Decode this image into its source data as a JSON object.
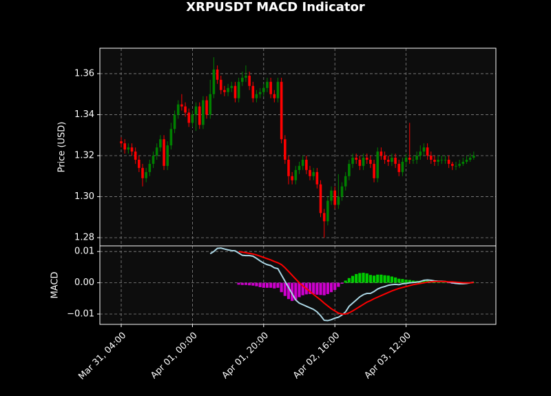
{
  "chart_data": [
    {
      "type": "candlestick",
      "title": "XRPUSDT MACD Indicator",
      "y_label": "Price (USD)",
      "up_color": "#008000",
      "down_color": "#ff0000",
      "open": [
        1.327,
        1.326,
        1.323,
        1.324,
        1.322,
        1.318,
        1.314,
        1.309,
        1.312,
        1.316,
        1.32,
        1.324,
        1.328,
        1.315,
        1.325,
        1.333,
        1.34,
        1.345,
        1.344,
        1.341,
        1.336,
        1.34,
        1.344,
        1.335,
        1.347,
        1.34,
        1.35,
        1.362,
        1.357,
        1.352,
        1.351,
        1.353,
        1.354,
        1.348,
        1.356,
        1.358,
        1.359,
        1.354,
        1.348,
        1.35,
        1.351,
        1.353,
        1.356,
        1.35,
        1.348,
        1.356,
        1.328,
        1.318,
        1.31,
        1.308,
        1.313,
        1.315,
        1.318,
        1.313,
        1.31,
        1.312,
        1.306,
        1.292,
        1.288,
        1.298,
        1.303,
        1.296,
        1.3,
        1.305,
        1.31,
        1.316,
        1.319,
        1.318,
        1.315,
        1.319,
        1.318,
        1.316,
        1.309,
        1.322,
        1.32,
        1.318,
        1.317,
        1.319,
        1.316,
        1.312,
        1.317,
        1.319,
        1.318,
        1.318,
        1.32,
        1.322,
        1.324,
        1.32,
        1.318,
        1.317,
        1.318,
        1.318,
        1.318,
        1.316,
        1.315,
        1.315,
        1.316,
        1.317,
        1.318,
        1.319
      ],
      "high": [
        1.329,
        1.328,
        1.326,
        1.326,
        1.324,
        1.32,
        1.316,
        1.314,
        1.318,
        1.322,
        1.326,
        1.33,
        1.33,
        1.327,
        1.336,
        1.342,
        1.347,
        1.35,
        1.346,
        1.343,
        1.342,
        1.346,
        1.346,
        1.349,
        1.349,
        1.357,
        1.368,
        1.364,
        1.359,
        1.354,
        1.355,
        1.356,
        1.356,
        1.358,
        1.361,
        1.364,
        1.361,
        1.356,
        1.352,
        1.353,
        1.355,
        1.358,
        1.358,
        1.352,
        1.358,
        1.358,
        1.33,
        1.32,
        1.312,
        1.315,
        1.317,
        1.32,
        1.32,
        1.315,
        1.314,
        1.314,
        1.308,
        1.294,
        1.3,
        1.305,
        1.305,
        1.311,
        1.307,
        1.312,
        1.318,
        1.321,
        1.321,
        1.32,
        1.321,
        1.321,
        1.32,
        1.318,
        1.324,
        1.324,
        1.322,
        1.32,
        1.321,
        1.321,
        1.318,
        1.319,
        1.321,
        1.336,
        1.32,
        1.322,
        1.325,
        1.326,
        1.326,
        1.322,
        1.32,
        1.32,
        1.32,
        1.32,
        1.32,
        1.317,
        1.317,
        1.318,
        1.319,
        1.32,
        1.321,
        1.322
      ],
      "low": [
        1.324,
        1.321,
        1.321,
        1.32,
        1.316,
        1.312,
        1.305,
        1.307,
        1.31,
        1.314,
        1.318,
        1.322,
        1.313,
        1.313,
        1.323,
        1.331,
        1.338,
        1.342,
        1.339,
        1.334,
        1.334,
        1.332,
        1.333,
        1.333,
        1.338,
        1.338,
        1.348,
        1.355,
        1.35,
        1.349,
        1.349,
        1.351,
        1.346,
        1.346,
        1.354,
        1.356,
        1.352,
        1.346,
        1.346,
        1.348,
        1.349,
        1.351,
        1.348,
        1.346,
        1.346,
        1.326,
        1.316,
        1.306,
        1.306,
        1.306,
        1.311,
        1.313,
        1.311,
        1.308,
        1.308,
        1.304,
        1.29,
        1.28,
        1.286,
        1.296,
        1.294,
        1.294,
        1.298,
        1.303,
        1.308,
        1.314,
        1.316,
        1.313,
        1.313,
        1.316,
        1.314,
        1.307,
        1.307,
        1.318,
        1.316,
        1.315,
        1.315,
        1.314,
        1.31,
        1.31,
        1.315,
        1.316,
        1.316,
        1.316,
        1.318,
        1.32,
        1.318,
        1.316,
        1.315,
        1.315,
        1.316,
        1.316,
        1.314,
        1.313,
        1.313,
        1.314,
        1.315,
        1.316,
        1.317,
        1.318
      ],
      "close": [
        1.326,
        1.323,
        1.324,
        1.322,
        1.318,
        1.314,
        1.309,
        1.312,
        1.316,
        1.32,
        1.324,
        1.328,
        1.315,
        1.325,
        1.333,
        1.34,
        1.345,
        1.344,
        1.341,
        1.336,
        1.34,
        1.344,
        1.335,
        1.347,
        1.34,
        1.35,
        1.362,
        1.357,
        1.352,
        1.351,
        1.353,
        1.354,
        1.348,
        1.356,
        1.358,
        1.359,
        1.354,
        1.348,
        1.35,
        1.351,
        1.353,
        1.356,
        1.35,
        1.348,
        1.356,
        1.328,
        1.318,
        1.31,
        1.308,
        1.313,
        1.315,
        1.318,
        1.313,
        1.31,
        1.312,
        1.306,
        1.292,
        1.288,
        1.298,
        1.303,
        1.296,
        1.3,
        1.305,
        1.31,
        1.316,
        1.319,
        1.318,
        1.315,
        1.319,
        1.318,
        1.316,
        1.309,
        1.322,
        1.32,
        1.318,
        1.317,
        1.319,
        1.316,
        1.312,
        1.317,
        1.319,
        1.318,
        1.318,
        1.32,
        1.322,
        1.324,
        1.32,
        1.318,
        1.317,
        1.318,
        1.318,
        1.318,
        1.316,
        1.315,
        1.315,
        1.316,
        1.317,
        1.318,
        1.319,
        1.32
      ],
      "ylim": [
        1.276,
        1.3724
      ],
      "yticks": [
        1.28,
        {
          "value": 1.3,
          "label": "1.30"
        },
        1.32,
        1.34,
        1.36
      ],
      "grid": true
    },
    {
      "type": "macd",
      "y_label": "MACD",
      "x": [
        "Mar 31, 04:00",
        null,
        null,
        null,
        null,
        null,
        null,
        null,
        null,
        null,
        null,
        null,
        null,
        null,
        null,
        null,
        null,
        null,
        null,
        null,
        "Apr 01, 00:00",
        null,
        null,
        null,
        null,
        null,
        null,
        null,
        null,
        null,
        null,
        null,
        null,
        null,
        null,
        null,
        null,
        null,
        null,
        null,
        "Apr 01, 20:00",
        null,
        null,
        null,
        null,
        null,
        null,
        null,
        null,
        null,
        null,
        null,
        null,
        null,
        null,
        null,
        null,
        null,
        null,
        null,
        "Apr 02, 16:00",
        null,
        null,
        null,
        null,
        null,
        null,
        null,
        null,
        null,
        null,
        null,
        null,
        null,
        null,
        null,
        null,
        null,
        null,
        null,
        "Apr 03, 12:00",
        null,
        null,
        null,
        null,
        null,
        null,
        null,
        null,
        null,
        null,
        null,
        null,
        null,
        null,
        null,
        null,
        null,
        null,
        null
      ],
      "series": [
        {
          "color": "#add8e6",
          "values": [
            null,
            null,
            null,
            null,
            null,
            null,
            null,
            null,
            null,
            null,
            null,
            null,
            null,
            null,
            null,
            null,
            null,
            null,
            null,
            null,
            null,
            null,
            null,
            null,
            null,
            0.0093,
            0.01,
            0.011,
            0.0111,
            0.0108,
            0.0105,
            0.0103,
            0.0102,
            0.0095,
            0.0088,
            0.0087,
            0.0087,
            0.0085,
            0.0078,
            0.007,
            0.0063,
            0.0058,
            0.0055,
            0.0048,
            0.0045,
            0.0025,
            0.0005,
            -0.0015,
            -0.0035,
            -0.0055,
            -0.0065,
            -0.007,
            -0.0075,
            -0.008,
            -0.0085,
            -0.0093,
            -0.0105,
            -0.012,
            -0.0121,
            -0.0118,
            -0.0113,
            -0.011,
            -0.0103,
            -0.0093,
            -0.0075,
            -0.0065,
            -0.0055,
            -0.0045,
            -0.0038,
            -0.0034,
            -0.0034,
            -0.0028,
            -0.002,
            -0.0015,
            -0.0012,
            -0.0008,
            -0.0006,
            -0.0005,
            -0.0006,
            -0.0003,
            -0.0002,
            0.0,
            0.0001,
            0.0002,
            0.0004,
            0.0008,
            0.0009,
            0.0008,
            0.0006,
            0.0005,
            0.0005,
            0.0004,
            0.0002,
            0.0,
            -0.0002,
            -0.0003,
            -0.0003,
            -0.0002,
            0.0,
            0.0002
          ]
        },
        {
          "color": "#ff0000",
          "values": [
            null,
            null,
            null,
            null,
            null,
            null,
            null,
            null,
            null,
            null,
            null,
            null,
            null,
            null,
            null,
            null,
            null,
            null,
            null,
            null,
            null,
            null,
            null,
            null,
            null,
            null,
            null,
            null,
            null,
            null,
            null,
            null,
            null,
            0.01,
            0.0098,
            0.0096,
            0.0094,
            0.0092,
            0.0089,
            0.0085,
            0.0081,
            0.0077,
            0.0073,
            0.0068,
            0.0064,
            0.0058,
            0.0048,
            0.0036,
            0.0024,
            0.0012,
            0.0,
            -0.001,
            -0.0019,
            -0.0028,
            -0.0037,
            -0.0046,
            -0.0055,
            -0.0065,
            -0.0074,
            -0.0083,
            -0.009,
            -0.0097,
            -0.01,
            -0.01,
            -0.0096,
            -0.009,
            -0.0083,
            -0.0076,
            -0.0069,
            -0.0062,
            -0.0057,
            -0.0051,
            -0.0046,
            -0.0041,
            -0.0036,
            -0.0031,
            -0.0026,
            -0.0022,
            -0.0018,
            -0.0015,
            -0.0012,
            -0.0009,
            -0.0006,
            -0.0004,
            -0.0002,
            0.0,
            0.0002,
            0.0003,
            0.0004,
            0.0004,
            0.0004,
            0.0004,
            0.0003,
            0.0003,
            0.0002,
            0.0001,
            0.0,
            0.0,
            0.0,
            0.0001
          ]
        }
      ],
      "histogram": {
        "up_color": "#00cc00",
        "down_color": "#cc00cc",
        "values": [
          null,
          null,
          null,
          null,
          null,
          null,
          null,
          null,
          null,
          null,
          null,
          null,
          null,
          null,
          null,
          null,
          null,
          null,
          null,
          null,
          null,
          null,
          null,
          null,
          null,
          null,
          null,
          null,
          null,
          null,
          null,
          null,
          null,
          -0.0006,
          -0.0007,
          -0.0007,
          -0.0008,
          -0.0009,
          -0.0011,
          -0.0014,
          -0.0016,
          -0.0016,
          -0.0016,
          -0.0018,
          -0.0016,
          -0.003,
          -0.0042,
          -0.0052,
          -0.0058,
          -0.0055,
          -0.0046,
          -0.004,
          -0.0037,
          -0.0036,
          -0.0036,
          -0.0038,
          -0.0039,
          -0.004,
          -0.0036,
          -0.003,
          -0.0023,
          -0.0013,
          -0.0003,
          0.0007,
          0.0015,
          0.0022,
          0.0028,
          0.0031,
          0.0032,
          0.003,
          0.0025,
          0.0023,
          0.0026,
          0.0026,
          0.0024,
          0.0023,
          0.002,
          0.0017,
          0.0013,
          0.0012,
          0.001,
          0.0009,
          0.0007,
          0.0006,
          0.0006,
          0.0008,
          0.0007,
          0.0005,
          0.0002,
          0.0001,
          0.0001,
          0.0,
          -0.0001,
          -0.0003,
          -0.0004,
          -0.0004,
          -0.0003,
          -0.0002,
          0.0,
          0.0001
        ]
      },
      "ylim": [
        -0.0133,
        0.0118
      ],
      "yticks": [
        {
          "value": -0.01,
          "label": "−0.01"
        },
        {
          "value": 0,
          "label": "0.00"
        },
        0.01
      ],
      "grid": true
    }
  ]
}
